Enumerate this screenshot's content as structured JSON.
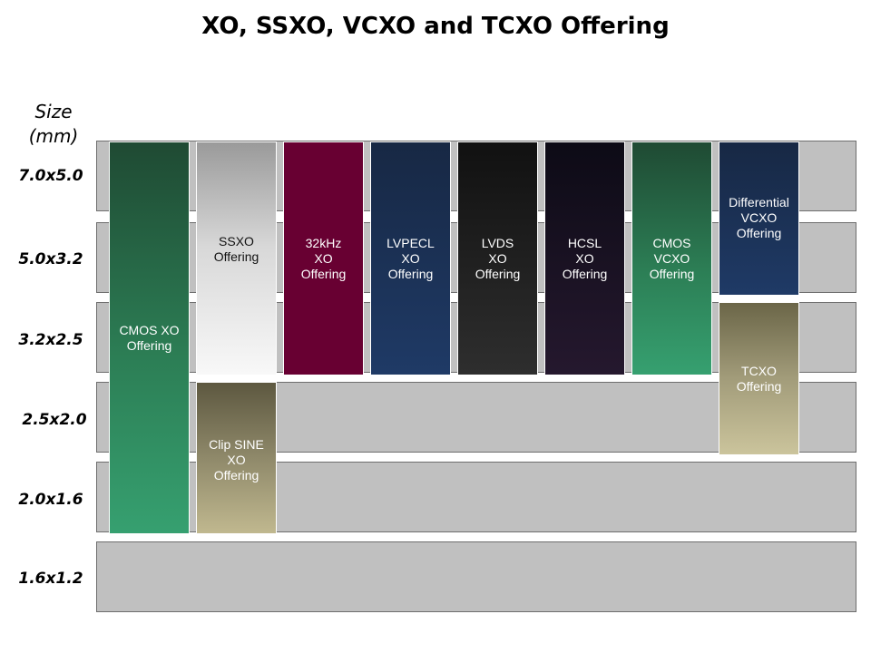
{
  "title": "XO, SSXO, VCXO and TCXO Offering",
  "axis_label": "Size\n(mm)",
  "rows": [
    {
      "size": "7.0x5.0"
    },
    {
      "size": "5.0x3.2"
    },
    {
      "size": "3.2x2.5"
    },
    {
      "size": "2.5x2.0"
    },
    {
      "size": "2.0x1.6"
    },
    {
      "size": "1.6x1.2"
    }
  ],
  "offerings": [
    {
      "label": "CMOS XO\nOffering",
      "sizes": [
        "7.0x5.0",
        "5.0x3.2",
        "3.2x2.5",
        "2.5x2.0",
        "2.0x1.6"
      ],
      "color": "#2e8a5c"
    },
    {
      "label": "SSXO\nOffering",
      "sizes": [
        "7.0x5.0",
        "5.0x3.2",
        "3.2x2.5"
      ],
      "color": "#d0d0d0"
    },
    {
      "label": "Clip SINE\nXO\nOffering",
      "sizes": [
        "2.5x2.0",
        "2.0x1.6"
      ],
      "color": "#a8a07c"
    },
    {
      "label": "32kHz\nXO\nOffering",
      "sizes": [
        "7.0x5.0",
        "5.0x3.2",
        "3.2x2.5"
      ],
      "color": "#680032"
    },
    {
      "label": "LVPECL\nXO\nOffering",
      "sizes": [
        "7.0x5.0",
        "5.0x3.2",
        "3.2x2.5"
      ],
      "color": "#1f3a66"
    },
    {
      "label": "LVDS\nXO\nOffering",
      "sizes": [
        "7.0x5.0",
        "5.0x3.2",
        "3.2x2.5"
      ],
      "color": "#262626"
    },
    {
      "label": "HCSL\nXO\nOffering",
      "sizes": [
        "7.0x5.0",
        "5.0x3.2",
        "3.2x2.5"
      ],
      "color": "#1c1424"
    },
    {
      "label": "CMOS\nVCXO\nOffering",
      "sizes": [
        "7.0x5.0",
        "5.0x3.2",
        "3.2x2.5"
      ],
      "color": "#2e8a5c"
    },
    {
      "label": "Differential\nVCXO\nOffering",
      "sizes": [
        "7.0x5.0",
        "5.0x3.2"
      ],
      "color": "#1f3a66"
    },
    {
      "label": "TCXO\nOffering",
      "sizes": [
        "3.2x2.5",
        "2.5x2.0"
      ],
      "color": "#b0a986"
    }
  ]
}
